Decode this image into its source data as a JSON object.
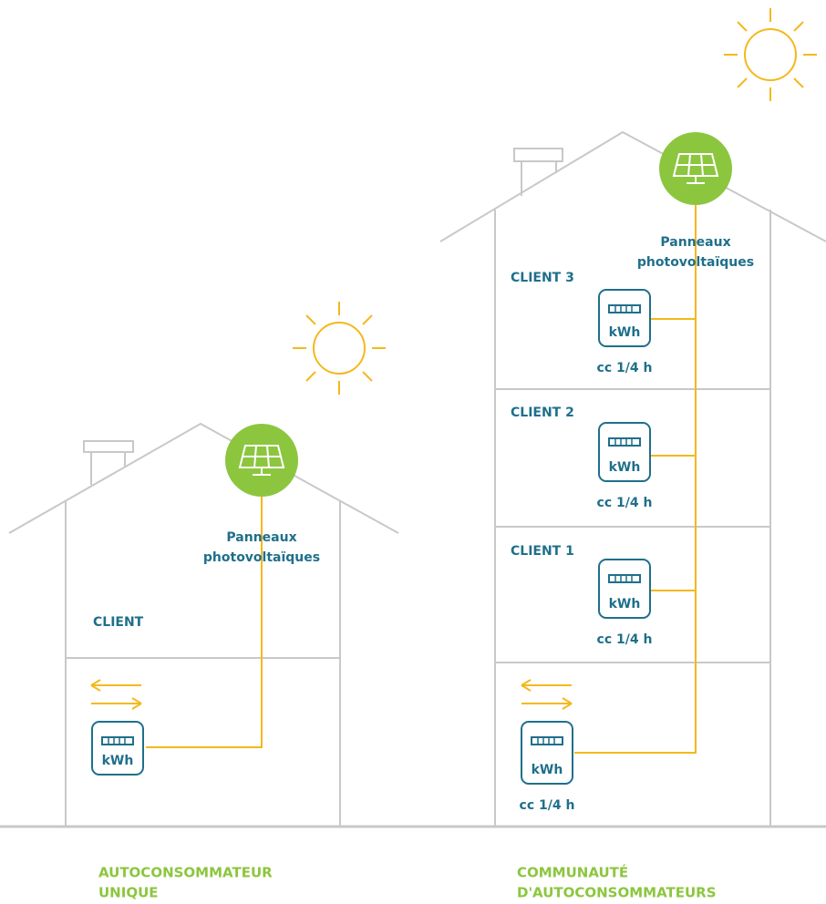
{
  "single": {
    "panel_label": [
      "Panneaux",
      "photovoltaïques"
    ],
    "client": "CLIENT",
    "meter_unit": "kWh",
    "caption": [
      "AUTOCONSOMMATEUR",
      "UNIQUE"
    ]
  },
  "community": {
    "panel_label": [
      "Panneaux",
      "photovoltaïques"
    ],
    "clients": [
      {
        "label": "CLIENT 3",
        "meter_unit": "kWh",
        "meter_note": "cc 1/4 h"
      },
      {
        "label": "CLIENT 2",
        "meter_unit": "kWh",
        "meter_note": "cc 1/4 h"
      },
      {
        "label": "CLIENT 1",
        "meter_unit": "kWh",
        "meter_note": "cc 1/4 h"
      }
    ],
    "producer_meter": {
      "meter_unit": "kWh",
      "meter_note": "cc 1/4 h"
    },
    "caption": [
      "COMMUNAUTÉ",
      "D'AUTOCONSOMMATEURS"
    ]
  }
}
